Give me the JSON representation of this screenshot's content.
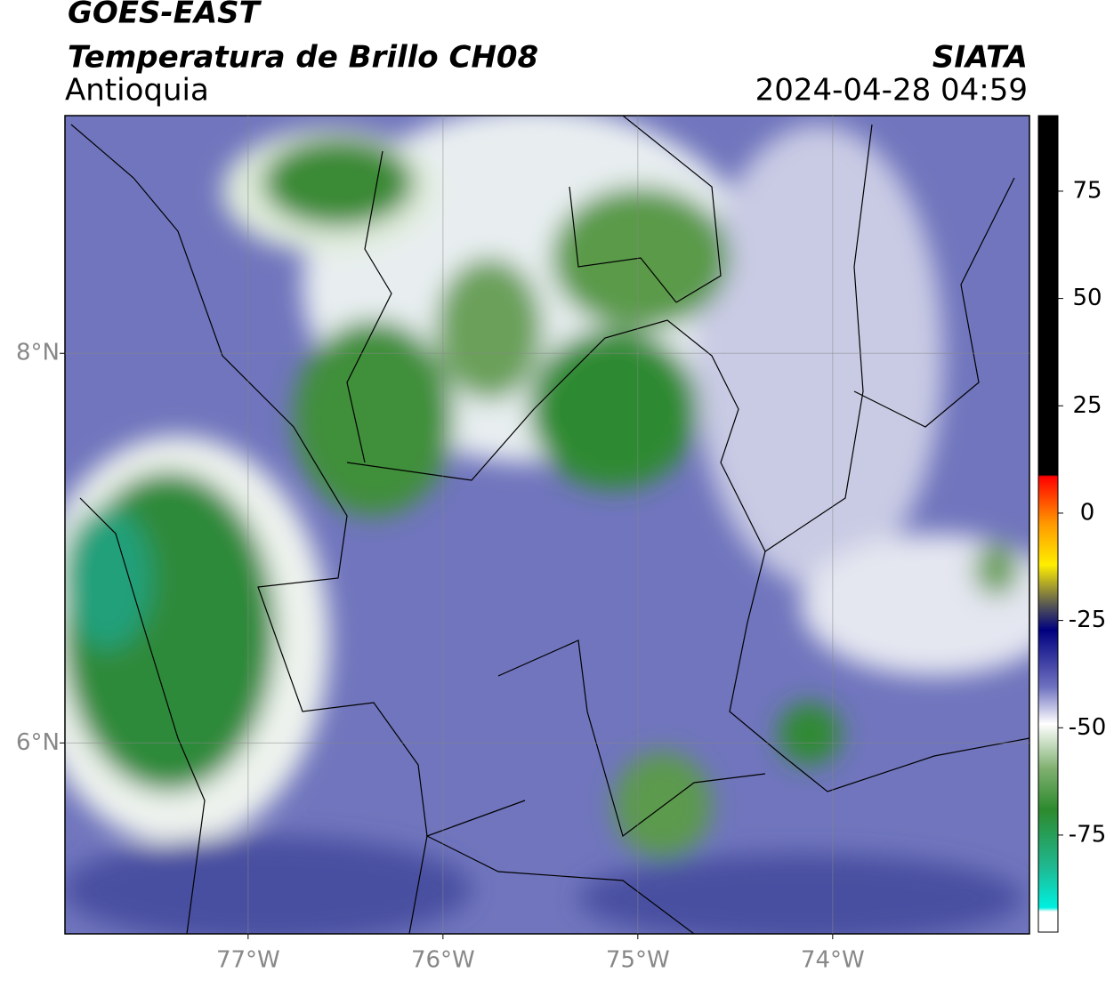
{
  "header": {
    "title": "GOES-EAST",
    "subtitle": "Temperatura de Brillo CH08",
    "region": "Antioquia",
    "source": "SIATA",
    "timestamp": "2024-04-28 04:59"
  },
  "map": {
    "lonlim": [
      -77.94,
      -72.99
    ],
    "latlim": [
      5.02,
      9.22
    ],
    "lon_ticks": [
      {
        "value": -77,
        "label": "77°W"
      },
      {
        "value": -76,
        "label": "76°W"
      },
      {
        "value": -75,
        "label": "75°W"
      },
      {
        "value": -74,
        "label": "74°W"
      }
    ],
    "lat_ticks": [
      {
        "value": 8,
        "label": "8°N"
      },
      {
        "value": 6,
        "label": "6°N"
      }
    ]
  },
  "colorbar": {
    "lim": [
      -97.6,
      92.6
    ],
    "ticks": [
      75,
      50,
      25,
      0,
      -25,
      -50,
      -75
    ]
  }
}
